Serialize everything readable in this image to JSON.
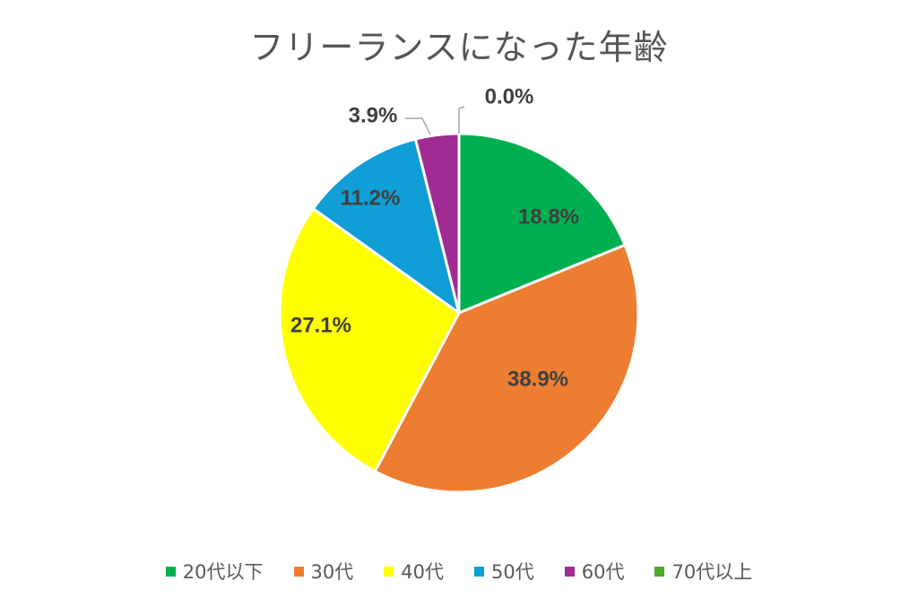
{
  "chart_data": {
    "type": "pie",
    "title": "フリーランスになった年齢",
    "categories": [
      "20代以下",
      "30代",
      "40代",
      "50代",
      "60代",
      "70代以上"
    ],
    "values": [
      18.8,
      38.9,
      27.1,
      11.2,
      3.9,
      0.0
    ],
    "labels": [
      "18.8%",
      "38.9%",
      "27.1%",
      "11.2%",
      "3.9%",
      "0.0%"
    ],
    "colors": [
      "#00b050",
      "#ed7d31",
      "#ffff00",
      "#0f9ed5",
      "#a02b93",
      "#4ea72e"
    ],
    "legend_position": "bottom",
    "start_angle": "top, clockwise"
  }
}
